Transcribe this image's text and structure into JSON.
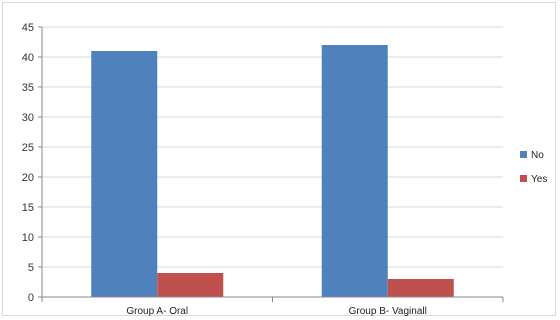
{
  "chart_data": {
    "type": "bar",
    "categories": [
      "Group A- Oral",
      "Group B- Vaginall"
    ],
    "series": [
      {
        "name": "No",
        "values": [
          41,
          42
        ],
        "color": "#4F81BD"
      },
      {
        "name": "Yes",
        "values": [
          4,
          3
        ],
        "color": "#C0504D"
      }
    ],
    "title": "",
    "xlabel": "",
    "ylabel": "",
    "ylim": [
      0,
      45
    ],
    "yticks": [
      0,
      5,
      10,
      15,
      20,
      25,
      30,
      35,
      40,
      45
    ],
    "grid": true,
    "legend_position": "right"
  }
}
